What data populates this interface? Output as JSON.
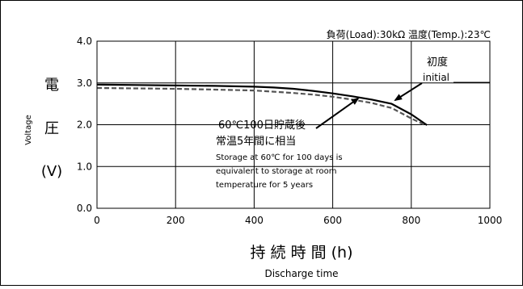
{
  "chart_data": {
    "type": "line",
    "conditions_label": "負荷(Load):30kΩ 温度(Temp.):23℃",
    "xlabel": "持 続 時 間 (h)",
    "xlabel_sub": "Discharge time",
    "ylabel_vertical": "Voltage",
    "ylabel_chars": [
      "電",
      "圧",
      "(V)"
    ],
    "xlim": [
      0,
      1000
    ],
    "ylim": [
      0.0,
      4.0
    ],
    "x_ticks": [
      0,
      200,
      400,
      600,
      800,
      1000
    ],
    "x_tick_labels": [
      "0",
      "200",
      "400",
      "600",
      "800",
      "1000"
    ],
    "y_ticks": [
      0.0,
      1.0,
      2.0,
      3.0,
      4.0
    ],
    "y_tick_labels": [
      "0.0",
      "1.0",
      "2.0",
      "3.0",
      "4.0"
    ],
    "grid": true,
    "series": [
      {
        "name": "初度 initial",
        "style": "solid",
        "color": "#000000",
        "x": [
          0,
          100,
          200,
          300,
          400,
          450,
          500,
          550,
          600,
          650,
          700,
          750,
          800,
          840
        ],
        "y": [
          2.96,
          2.95,
          2.94,
          2.93,
          2.91,
          2.89,
          2.86,
          2.81,
          2.75,
          2.68,
          2.6,
          2.5,
          2.25,
          1.99
        ]
      },
      {
        "name": "60℃100日貯蔵後 常温5年間に相当",
        "style": "dashed",
        "color": "#555555",
        "x": [
          0,
          100,
          200,
          300,
          400,
          450,
          500,
          550,
          600,
          650,
          700,
          750,
          800,
          835
        ],
        "y": [
          2.88,
          2.87,
          2.86,
          2.84,
          2.82,
          2.79,
          2.76,
          2.72,
          2.67,
          2.6,
          2.52,
          2.4,
          2.15,
          1.99
        ]
      }
    ],
    "annotations": [
      {
        "id": "initial",
        "lines": [
          "初度",
          "initial"
        ]
      },
      {
        "id": "storage",
        "lines": [
          "60℃100日貯蔵後",
          "常温5年間に相当",
          "Storage at 60℃ for 100 days is",
          "equivalent to storage at room",
          "temperature for 5 years"
        ]
      }
    ]
  }
}
